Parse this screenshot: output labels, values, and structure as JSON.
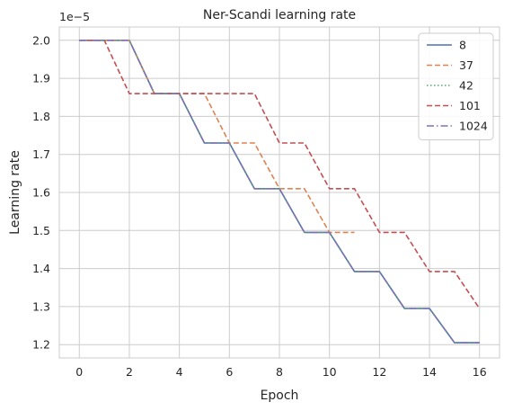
{
  "chart_data": {
    "type": "line",
    "title": "Ner-Scandi learning rate",
    "xlabel": "Epoch",
    "ylabel": "Learning rate",
    "offset_text": "1e−5",
    "scale": 1e-05,
    "xlim": [
      -0.8,
      16.8
    ],
    "ylim": [
      1.165,
      2.035
    ],
    "xticks": [
      0,
      2,
      4,
      6,
      8,
      10,
      12,
      14,
      16
    ],
    "xtick_labels": [
      "0",
      "2",
      "4",
      "6",
      "8",
      "10",
      "12",
      "14",
      "16"
    ],
    "yticks": [
      1.2,
      1.3,
      1.4,
      1.5,
      1.6,
      1.7,
      1.8,
      1.9,
      2.0
    ],
    "ytick_labels": [
      "1.2",
      "1.3",
      "1.4",
      "1.5",
      "1.6",
      "1.7",
      "1.8",
      "1.9",
      "2.0"
    ],
    "grid": true,
    "legend_position": "top-right",
    "series": [
      {
        "name": "8",
        "color": "#4c72b0",
        "dash": "solid",
        "x": [
          0,
          1,
          2,
          3,
          4,
          5,
          6,
          7,
          8,
          9,
          10,
          11,
          12,
          13,
          14,
          15,
          16
        ],
        "y": [
          2.0,
          2.0,
          2.0,
          1.86,
          1.86,
          1.73,
          1.73,
          1.61,
          1.61,
          1.495,
          1.495,
          1.392,
          1.392,
          1.295,
          1.295,
          1.205,
          1.205
        ]
      },
      {
        "name": "37",
        "color": "#dd8452",
        "dash": "dashed",
        "x": [
          0,
          1,
          2,
          3,
          4,
          5,
          6,
          7,
          8,
          9,
          10,
          11
        ],
        "y": [
          2.0,
          2.0,
          2.0,
          1.86,
          1.86,
          1.86,
          1.73,
          1.73,
          1.61,
          1.61,
          1.495,
          1.495
        ]
      },
      {
        "name": "42",
        "color": "#55a868",
        "dash": "dotted",
        "x": [
          0,
          1,
          2,
          3,
          4,
          5,
          6,
          7,
          8,
          9,
          10,
          11,
          12,
          13,
          14,
          15,
          16
        ],
        "y": [
          2.0,
          2.0,
          2.0,
          1.86,
          1.86,
          1.73,
          1.73,
          1.61,
          1.61,
          1.495,
          1.495,
          1.392,
          1.392,
          1.295,
          1.295,
          1.205,
          1.205
        ]
      },
      {
        "name": "101",
        "color": "#c44e52",
        "dash": "dashed",
        "x": [
          0,
          1,
          2,
          3,
          4,
          5,
          6,
          7,
          8,
          9,
          10,
          11,
          12,
          13,
          14,
          15,
          16
        ],
        "y": [
          2.0,
          2.0,
          1.86,
          1.86,
          1.86,
          1.86,
          1.86,
          1.86,
          1.73,
          1.73,
          1.61,
          1.61,
          1.495,
          1.495,
          1.392,
          1.392,
          1.295
        ]
      },
      {
        "name": "1024",
        "color": "#8172b3",
        "dash": "dashdot",
        "x": [
          0,
          1,
          2,
          3,
          4,
          5,
          6,
          7,
          8,
          9,
          10,
          11,
          12,
          13,
          14,
          15,
          16
        ],
        "y": [
          2.0,
          2.0,
          2.0,
          1.86,
          1.86,
          1.73,
          1.73,
          1.61,
          1.61,
          1.495,
          1.495,
          1.392,
          1.392,
          1.295,
          1.295,
          1.205,
          1.205
        ]
      }
    ]
  }
}
